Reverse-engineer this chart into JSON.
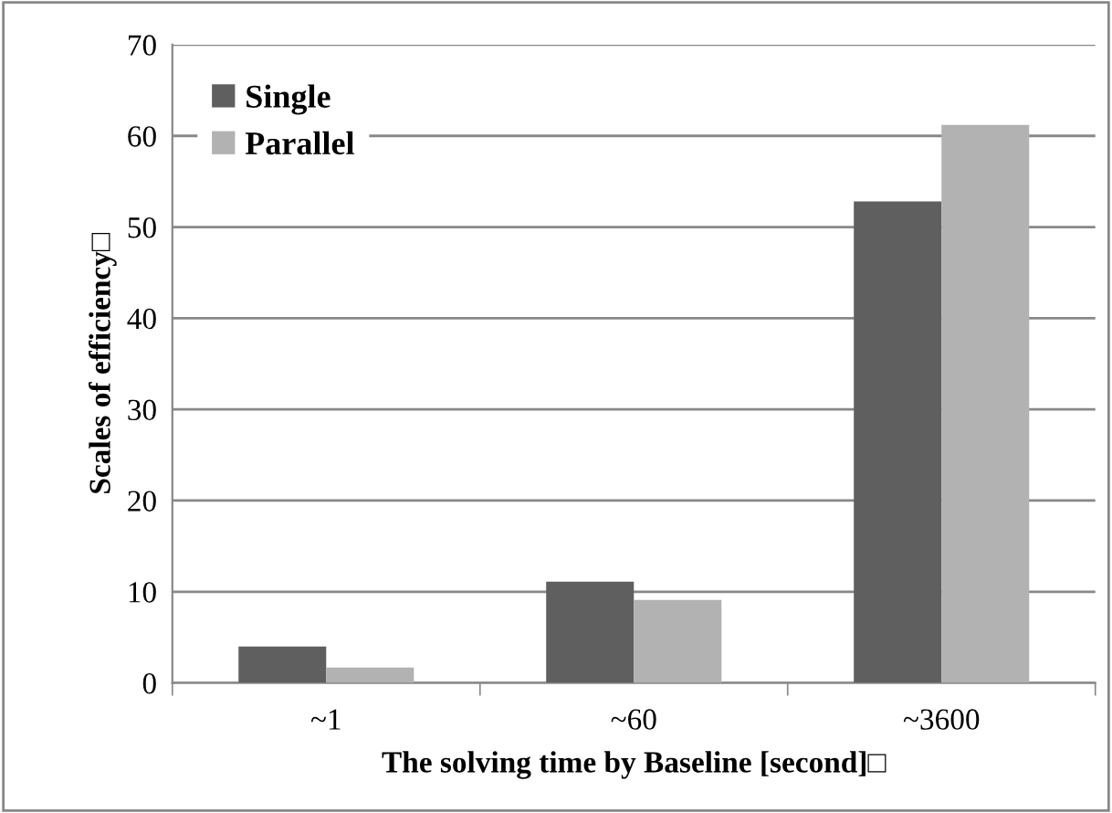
{
  "chart_data": {
    "type": "bar",
    "xlabel": "The solving time by Baseline [second]□",
    "ylabel": "Scales of efficiency□",
    "categories": [
      "~1",
      "~60",
      "~3600"
    ],
    "series": [
      {
        "name": "Single",
        "color": "#5f5f5f",
        "values": [
          4.0,
          11.1,
          52.8
        ]
      },
      {
        "name": "Parallel",
        "color": "#b2b2b2",
        "values": [
          1.7,
          9.1,
          61.2
        ]
      }
    ],
    "ylim": [
      0,
      70
    ],
    "yticks": [
      0,
      10,
      20,
      30,
      40,
      50,
      60,
      70
    ],
    "grid": "y",
    "legend": "top left"
  }
}
